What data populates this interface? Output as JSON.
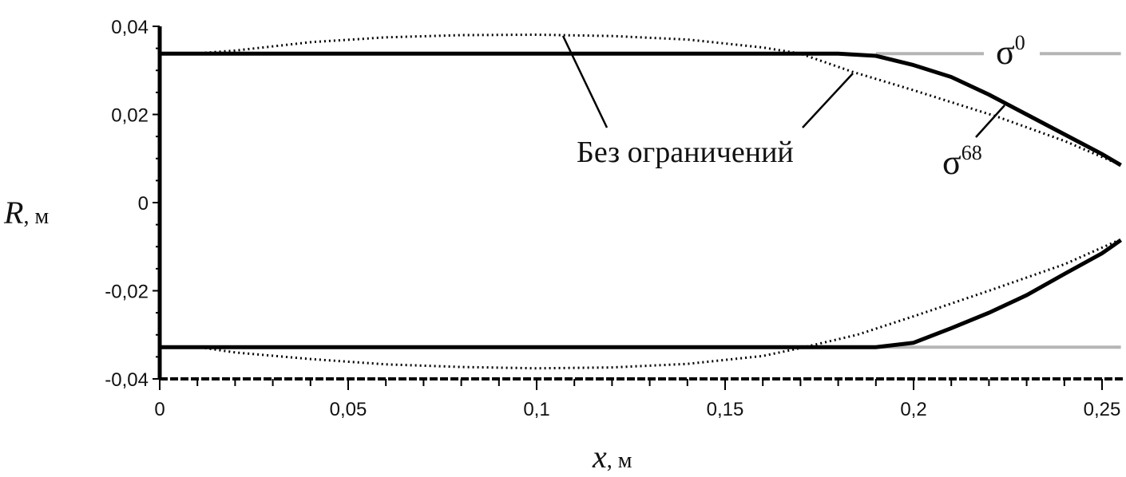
{
  "chart_data": {
    "type": "line",
    "title": "",
    "xlabel": "x",
    "xunit": ", м",
    "ylabel": "R",
    "yunit": ", м",
    "xlim": [
      0,
      0.256
    ],
    "ylim": [
      -0.04,
      0.04
    ],
    "grid": false,
    "x_ticks": [
      0,
      0.05,
      0.1,
      0.15,
      0.2,
      0.25
    ],
    "x_tick_labels": [
      "0",
      "0,05",
      "0,1",
      "0,15",
      "0,2",
      "0,25"
    ],
    "y_ticks": [
      0.04,
      0.02,
      0,
      -0.02,
      -0.04
    ],
    "y_tick_labels": [
      "0,04",
      "0,02",
      "0",
      "-0,02",
      "-0,04"
    ],
    "annotations": {
      "unconstrained": "Без ограничений",
      "sigma0_base": "σ",
      "sigma0_sup": "0",
      "sigma68_base": "σ",
      "sigma68_sup": "68"
    },
    "series": [
      {
        "id": "sigma68_upper",
        "style": "solid-thick",
        "color": "#000000",
        "x": [
          0,
          0.18,
          0.19,
          0.2,
          0.21,
          0.22,
          0.23,
          0.24,
          0.25,
          0.255
        ],
        "y": [
          0.0338,
          0.0338,
          0.0333,
          0.0312,
          0.0285,
          0.0245,
          0.02,
          0.0155,
          0.011,
          0.0085
        ]
      },
      {
        "id": "sigma68_lower",
        "style": "solid-thick",
        "color": "#000000",
        "x": [
          0,
          0.19,
          0.2,
          0.21,
          0.22,
          0.23,
          0.24,
          0.25,
          0.255
        ],
        "y": [
          -0.0328,
          -0.0328,
          -0.0318,
          -0.0285,
          -0.025,
          -0.021,
          -0.0162,
          -0.0115,
          -0.0085
        ]
      },
      {
        "id": "sigma0_upper",
        "style": "solid-gray",
        "color": "#b5b5b5",
        "x": [
          0.19,
          0.255
        ],
        "y": [
          0.0338,
          0.0338
        ]
      },
      {
        "id": "sigma0_lower",
        "style": "solid-gray",
        "color": "#b5b5b5",
        "x": [
          0.19,
          0.255
        ],
        "y": [
          -0.0328,
          -0.0328
        ]
      },
      {
        "id": "unconstrained_upper",
        "style": "dotted",
        "color": "#000000",
        "x": [
          0.012,
          0.02,
          0.04,
          0.06,
          0.08,
          0.1,
          0.12,
          0.14,
          0.16,
          0.17,
          0.1837,
          0.2,
          0.2225,
          0.24,
          0.254
        ],
        "y": [
          0.034,
          0.0345,
          0.0364,
          0.0375,
          0.038,
          0.0381,
          0.0378,
          0.037,
          0.0352,
          0.0338,
          0.0297,
          0.0255,
          0.0194,
          0.014,
          0.0089
        ]
      },
      {
        "id": "unconstrained_lower",
        "style": "dotted",
        "color": "#000000",
        "x": [
          0.012,
          0.02,
          0.04,
          0.06,
          0.08,
          0.1,
          0.12,
          0.14,
          0.16,
          0.17,
          0.185,
          0.2,
          0.22,
          0.24,
          0.254
        ],
        "y": [
          -0.033,
          -0.034,
          -0.0355,
          -0.0367,
          -0.0373,
          -0.0376,
          -0.0374,
          -0.0366,
          -0.0348,
          -0.033,
          -0.03,
          -0.0258,
          -0.02,
          -0.014,
          -0.0087
        ]
      }
    ]
  }
}
